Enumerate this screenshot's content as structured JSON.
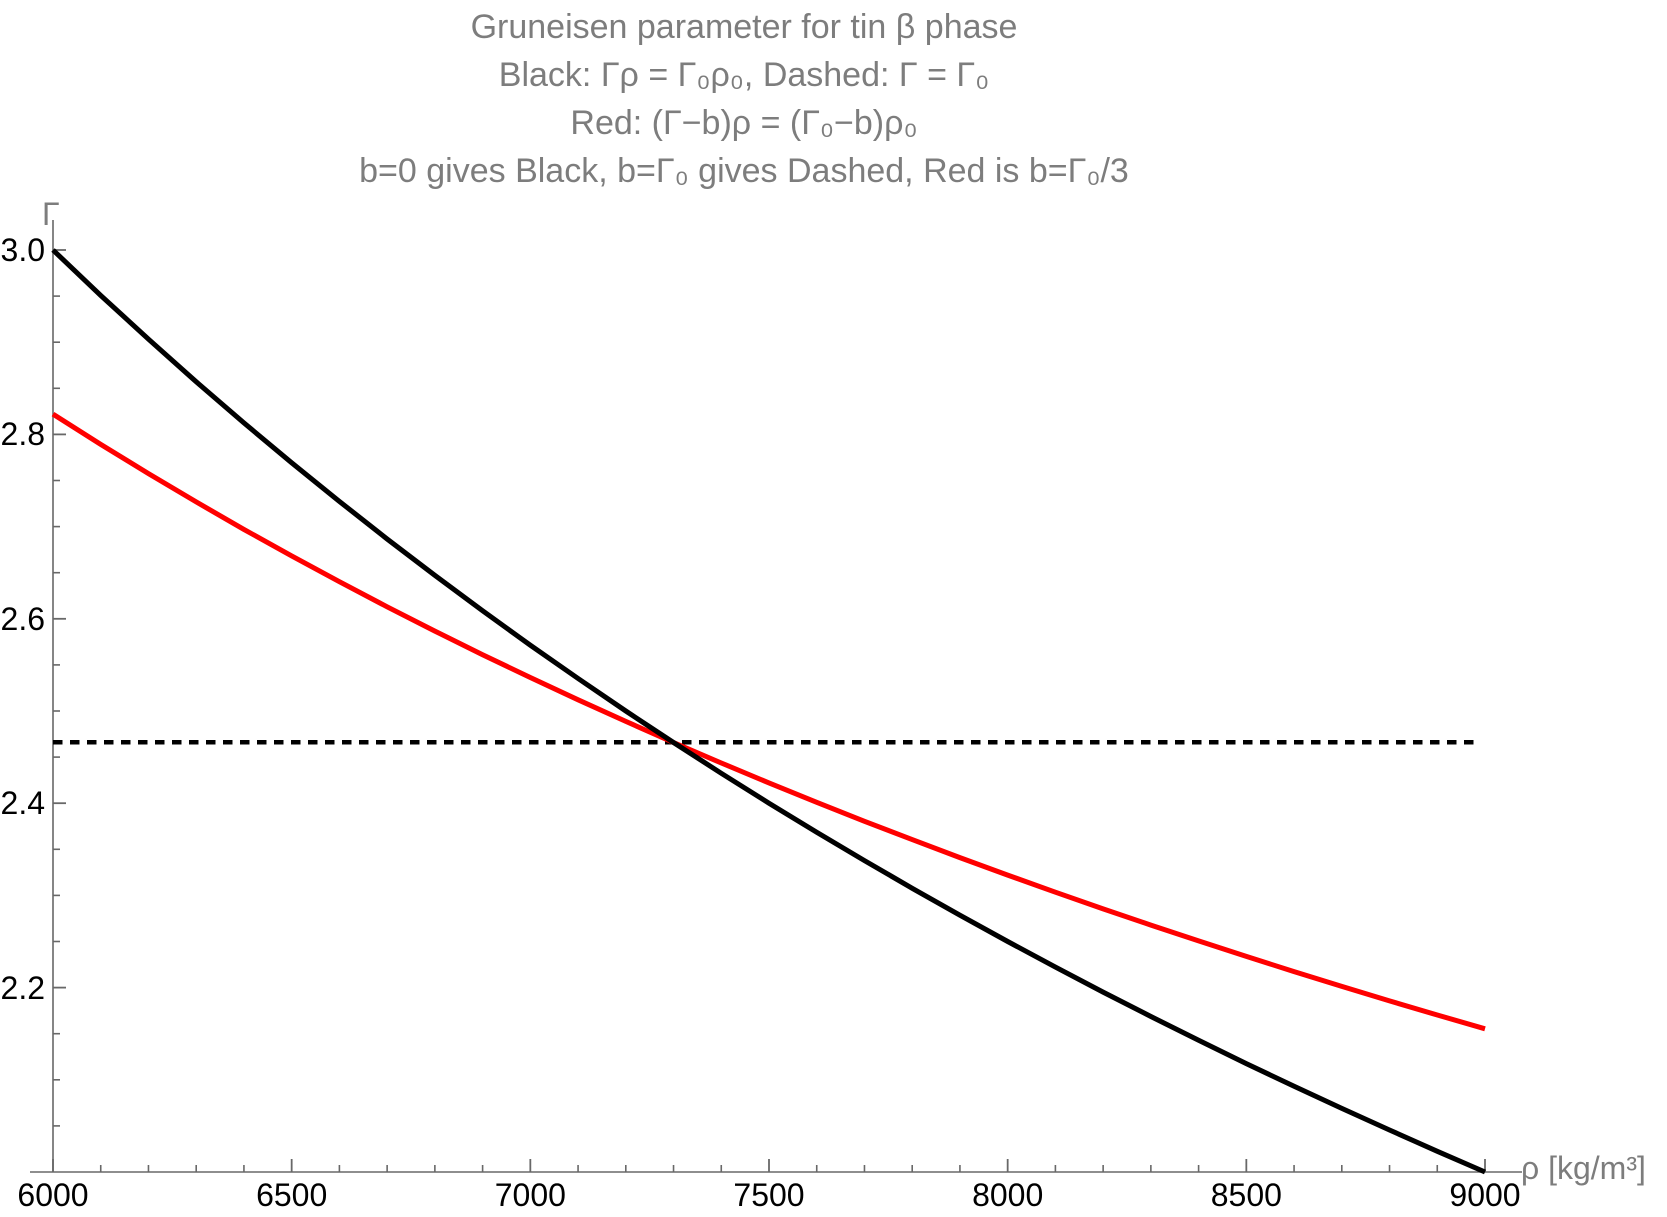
{
  "chart_data": {
    "type": "line",
    "title_lines": [
      "Gruneisen parameter for tin β phase",
      "Black: Γρ = Γ₀ρ₀, Dashed: Γ = Γ₀",
      "Red:  (Γ−b)ρ = (Γ₀−b)ρ₀",
      "b=0 gives Black, b=Γ₀ gives Dashed, Red is b=Γ₀/3"
    ],
    "xlabel": "ρ [kg/m³]",
    "ylabel": "Γ",
    "xlim": [
      6000,
      9000
    ],
    "ylim": [
      2.0,
      3.0
    ],
    "grid": false,
    "legend_position": "none",
    "x_ticks": {
      "values": [
        6000,
        6500,
        7000,
        7500,
        8000,
        8500,
        9000
      ],
      "labels": [
        "6000",
        "6500",
        "7000",
        "7500",
        "8000",
        "8500",
        "9000"
      ],
      "minor_step": 100
    },
    "y_ticks": {
      "values": [
        3.0,
        2.8,
        2.6,
        2.4,
        2.2
      ],
      "labels": [
        "3.0",
        "2.8",
        "2.6",
        "2.4",
        "2.2"
      ],
      "minor_step": 0.05
    },
    "annotations": {
      "dashed_line_value": 2.466,
      "curves_cross_at": {
        "rho0": 7300,
        "gamma0": 2.466
      }
    },
    "colors": {
      "black_curve": "#000000",
      "red_curve": "#ff0000",
      "label_gray": "#7d7d7d",
      "axis_gray": "#686868",
      "tick_label_color": "#000000"
    },
    "series": [
      {
        "name": "black-solid Γ=Γ₀ρ₀/ρ",
        "color": "#000000",
        "style": "solid",
        "width": 5,
        "x": [
          6000,
          6100,
          6200,
          6300,
          6400,
          6500,
          6600,
          6700,
          6800,
          6900,
          7000,
          7100,
          7200,
          7300,
          7400,
          7500,
          7600,
          7700,
          7800,
          7900,
          8000,
          8100,
          8200,
          8300,
          8400,
          8500,
          8600,
          8700,
          8800,
          8900,
          9000
        ],
        "y": [
          3.0,
          2.9508,
          2.9032,
          2.8571,
          2.8125,
          2.7692,
          2.7273,
          2.6866,
          2.6471,
          2.6087,
          2.5714,
          2.5352,
          2.5,
          2.4658,
          2.4324,
          2.4,
          2.3684,
          2.3377,
          2.3077,
          2.2785,
          2.25,
          2.2222,
          2.1951,
          2.1687,
          2.1429,
          2.1176,
          2.093,
          2.069,
          2.0455,
          2.0225,
          2.0
        ]
      },
      {
        "name": "red-solid Γ=b+(Γ₀−b)ρ₀/ρ, b=Γ₀/3",
        "color": "#ff0000",
        "style": "solid",
        "width": 5,
        "x": [
          6000,
          6100,
          6200,
          6300,
          6400,
          6500,
          6600,
          6700,
          6800,
          6900,
          7000,
          7100,
          7200,
          7300,
          7400,
          7500,
          7600,
          7700,
          7800,
          7900,
          8000,
          8100,
          8200,
          8300,
          8400,
          8500,
          8600,
          8700,
          8800,
          8900,
          9000
        ],
        "y": [
          2.822,
          2.7892,
          2.7575,
          2.7268,
          2.697,
          2.6682,
          2.6402,
          2.613,
          2.5867,
          2.5611,
          2.5363,
          2.5121,
          2.4887,
          2.4658,
          2.4436,
          2.422,
          2.401,
          2.3804,
          2.3605,
          2.341,
          2.322,
          2.3035,
          2.2854,
          2.2678,
          2.2506,
          2.2338,
          2.2174,
          2.2013,
          2.1856,
          2.1703,
          2.1553
        ]
      },
      {
        "name": "black-dashed Γ=Γ₀",
        "color": "#000000",
        "style": "dashed",
        "width": 4.5,
        "dash": [
          9.5,
          7.5
        ],
        "x": [
          6000,
          8985
        ],
        "y": [
          2.466,
          2.466
        ]
      }
    ]
  }
}
